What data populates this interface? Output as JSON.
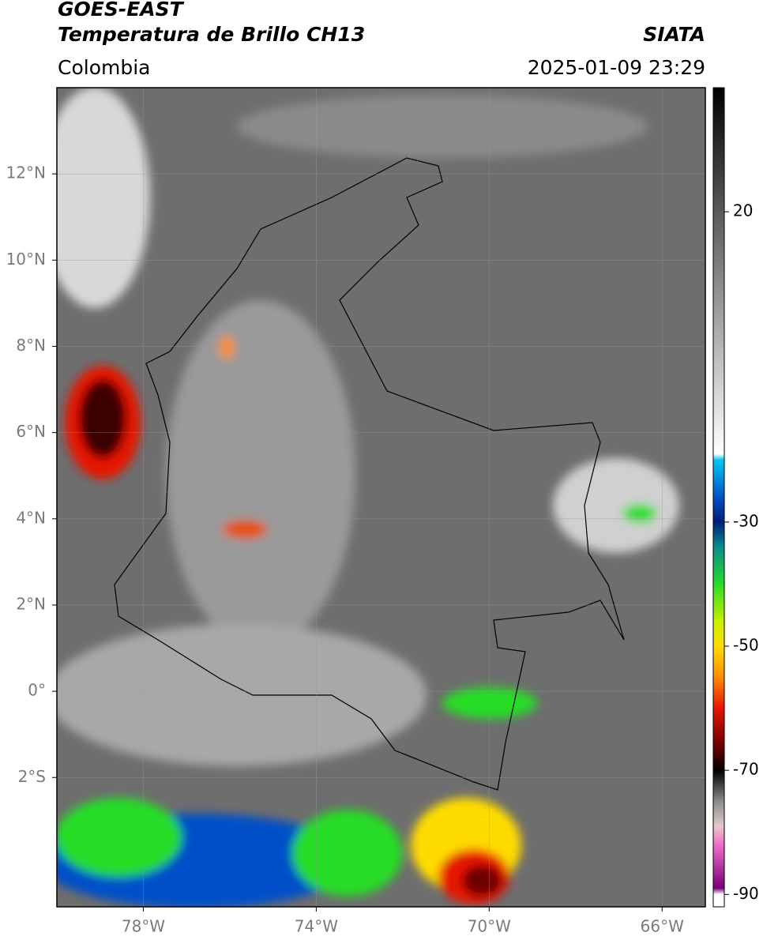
{
  "header": {
    "title": "GOES-EAST",
    "subtitle": "Temperatura de Brillo CH13",
    "source": "SIATA",
    "region": "Colombia",
    "timestamp": "2025-01-09 23:29"
  },
  "map": {
    "lonlim": [
      -80,
      -65
    ],
    "latlim": [
      -5,
      14
    ],
    "lonticks": [
      {
        "value": -78,
        "label": "78°W"
      },
      {
        "value": -74,
        "label": "74°W"
      },
      {
        "value": -70,
        "label": "70°W"
      },
      {
        "value": -66,
        "label": "66°W"
      }
    ],
    "latticks": [
      {
        "value": 12,
        "label": "12°N"
      },
      {
        "value": 10,
        "label": "10°N"
      },
      {
        "value": 8,
        "label": "8°N"
      },
      {
        "value": 6,
        "label": "6°N"
      },
      {
        "value": 4,
        "label": "4°N"
      },
      {
        "value": 2,
        "label": "2°N"
      },
      {
        "value": 0,
        "label": "0°"
      },
      {
        "value": -2,
        "label": "2°S"
      }
    ],
    "grid": true
  },
  "colorbar": {
    "lim": [
      -92,
      40
    ],
    "ticks": [
      20,
      -30,
      -50,
      -70,
      -90
    ],
    "colors": [
      {
        "value": 40,
        "color": "#000000"
      },
      {
        "value": 20,
        "color": "#5a5a5a"
      },
      {
        "value": -19,
        "color": "#ffffff"
      },
      {
        "value": -20,
        "color": "#00c8f0"
      },
      {
        "value": -26,
        "color": "#0050c8"
      },
      {
        "value": -30,
        "color": "#001e78"
      },
      {
        "value": -34,
        "color": "#0a8c8c"
      },
      {
        "value": -40,
        "color": "#28dc28"
      },
      {
        "value": -46,
        "color": "#c8f000"
      },
      {
        "value": -50,
        "color": "#ffdc00"
      },
      {
        "value": -55,
        "color": "#ff8c00"
      },
      {
        "value": -60,
        "color": "#e61400"
      },
      {
        "value": -66,
        "color": "#6e0000"
      },
      {
        "value": -70,
        "color": "#000000"
      },
      {
        "value": -75,
        "color": "#8c8c8c"
      },
      {
        "value": -79,
        "color": "#e6c8c8"
      },
      {
        "value": -82,
        "color": "#f06ec8"
      },
      {
        "value": -89,
        "color": "#780078"
      },
      {
        "value": -90,
        "color": "#ffffff"
      }
    ]
  }
}
